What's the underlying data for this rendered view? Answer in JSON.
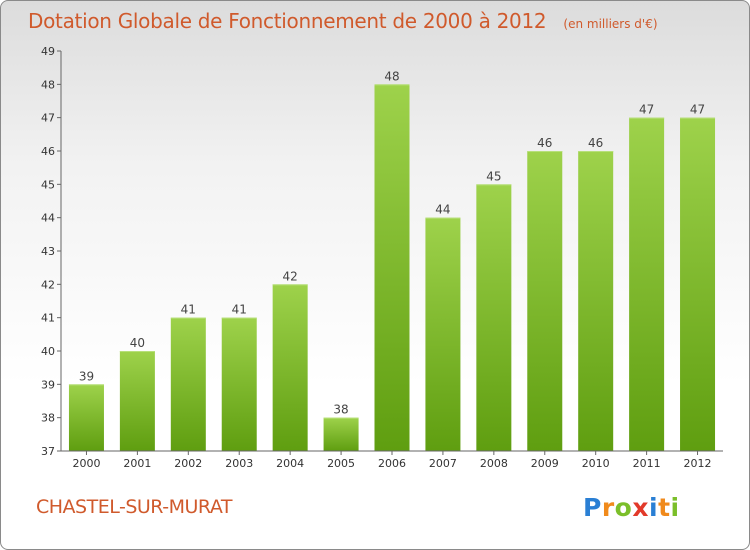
{
  "chart_data": {
    "type": "bar",
    "title": "Dotation Globale de Fonctionnement de 2000 à 2012",
    "unit_label": "(en milliers d'€)",
    "categories": [
      "2000",
      "2001",
      "2002",
      "2003",
      "2004",
      "2005",
      "2006",
      "2007",
      "2008",
      "2009",
      "2010",
      "2011",
      "2012"
    ],
    "values": [
      39,
      40,
      41,
      41,
      42,
      38,
      48,
      44,
      45,
      46,
      46,
      47,
      47
    ],
    "ylim": [
      37,
      49
    ],
    "yticks": [
      37,
      38,
      39,
      40,
      41,
      42,
      43,
      44,
      45,
      46,
      47,
      48,
      49
    ],
    "grid": false,
    "bar_color": "#8cc63f"
  },
  "footer": {
    "commune": "CHASTEL-SUR-MURAT",
    "logo": {
      "text": "Proxiti",
      "letters": [
        {
          "ch": "P",
          "color": "#2a7fd4"
        },
        {
          "ch": "r",
          "color": "#f08a1c"
        },
        {
          "ch": "o",
          "color": "#7bbf2a"
        },
        {
          "ch": "x",
          "color": "#e23a2a"
        },
        {
          "ch": "i",
          "color": "#2a7fd4"
        },
        {
          "ch": "t",
          "color": "#f08a1c"
        },
        {
          "ch": "i",
          "color": "#7bbf2a"
        }
      ]
    }
  }
}
